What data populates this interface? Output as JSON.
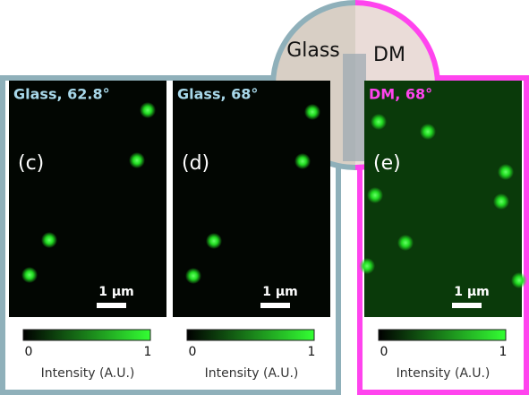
{
  "top_image": {
    "left_label": "Glass",
    "right_label": "DM"
  },
  "panels": [
    {
      "title": "Glass, 62.8°",
      "label": "(c)",
      "scale_bar": "1 µm",
      "colorbar": {
        "min": "0",
        "max": "1",
        "label": "Intensity (A.U.)"
      }
    },
    {
      "title": "Glass, 68°",
      "label": "(d)",
      "scale_bar": "1 µm",
      "colorbar": {
        "min": "0",
        "max": "1",
        "label": "Intensity (A.U.)"
      }
    },
    {
      "title": "DM, 68°",
      "label": "(e)",
      "scale_bar": "1 µm",
      "colorbar": {
        "min": "0",
        "max": "1",
        "label": "Intensity (A.U.)"
      }
    }
  ]
}
